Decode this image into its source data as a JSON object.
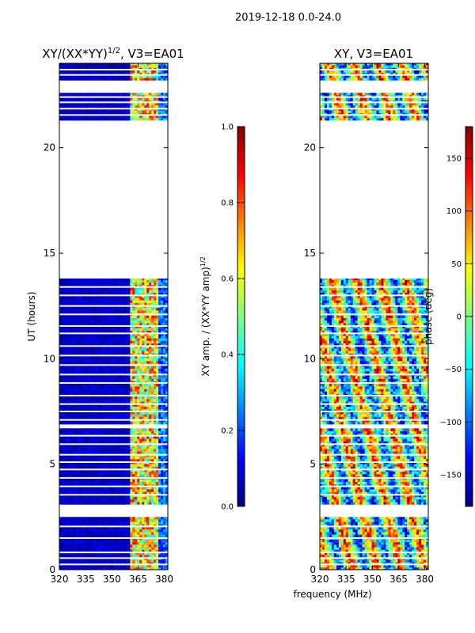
{
  "suptitle": "2019-12-18 0.0-24.0",
  "xlabel_common": "frequency (MHz)",
  "colors": {
    "jet": [
      "#000080",
      "#0000ff",
      "#0080ff",
      "#00ffff",
      "#80ff80",
      "#ffff00",
      "#ff8000",
      "#ff0000",
      "#800000"
    ]
  },
  "chart_data": [
    {
      "type": "heatmap",
      "title_main": "XY/(XX*YY)",
      "title_exp": "1/2",
      "title_tail": ", V3=EA01",
      "ylabel": "UT (hours)",
      "xlim": [
        320,
        382
      ],
      "ylim": [
        0,
        24
      ],
      "xticks": [
        320,
        335,
        350,
        365,
        380
      ],
      "yticks": [
        0,
        5,
        10,
        15,
        20
      ],
      "ytick_labels": [
        "0",
        "5",
        "10",
        "15",
        "20"
      ],
      "colorbar": {
        "label_main": "XY amp. / (XX*YY amp)",
        "label_exp": "1/2",
        "range": [
          0.0,
          1.0
        ],
        "ticks": [
          0.0,
          0.2,
          0.4,
          0.6,
          0.8,
          1.0
        ],
        "tick_labels": [
          "0.0",
          "0.2",
          "0.4",
          "0.6",
          "0.8",
          "1.0"
        ]
      }
    },
    {
      "type": "heatmap",
      "title": "XY, V3=EA01",
      "xlim": [
        320,
        382
      ],
      "ylim": [
        0,
        24
      ],
      "xticks": [
        320,
        335,
        350,
        365,
        380
      ],
      "yticks": [
        0,
        5,
        10,
        15,
        20
      ],
      "ytick_labels": [
        "0",
        "5",
        "10",
        "15",
        "20"
      ],
      "colorbar": {
        "label": "phase (deg)",
        "range": [
          -180,
          180
        ],
        "ticks": [
          -150,
          -100,
          -50,
          0,
          50,
          100,
          150
        ],
        "tick_labels": [
          "−150",
          "−100",
          "−50",
          "0",
          "50",
          "100",
          "150"
        ]
      }
    }
  ],
  "data_blocks_hours": [
    [
      0.0,
      2.5
    ],
    [
      3.1,
      6.7
    ],
    [
      6.9,
      13.8
    ],
    [
      21.3,
      22.6
    ],
    [
      23.2,
      24.0
    ]
  ],
  "gap_lines_hours": [
    0.25,
    0.55,
    0.82,
    1.5,
    2.05,
    3.55,
    3.95,
    4.35,
    4.75,
    5.1,
    5.45,
    5.95,
    6.35,
    7.1,
    7.5,
    7.85,
    8.25,
    8.85,
    9.25,
    9.7,
    10.15,
    10.6,
    11.2,
    11.55,
    12.1,
    12.5,
    13.0,
    13.4,
    21.55,
    21.85,
    22.15,
    22.4,
    23.45,
    23.7
  ]
}
